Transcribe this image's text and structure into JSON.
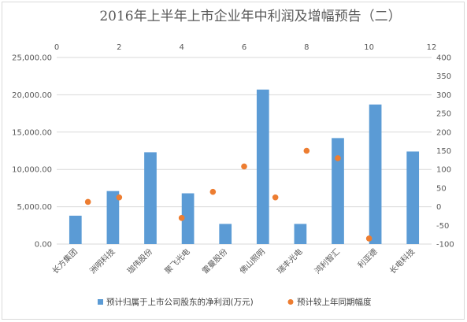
{
  "chart_data": {
    "type": "bar",
    "title": "2016年上半年上市企业年中利润及增幅预告（二）",
    "categories": [
      "长方集团",
      "洲明科技",
      "珈伟股份",
      "聚飞光电",
      "雷曼股份",
      "佛山照明",
      "瑞丰光电",
      "鸿利智汇",
      "利亚德",
      "长电科技"
    ],
    "series": [
      {
        "name": "预计归属于上市公司股东的净利润(万元)",
        "type": "bar",
        "axis": "left",
        "color": "#5b9bd5",
        "values": [
          3800,
          7100,
          12300,
          6800,
          2700,
          20700,
          2700,
          14200,
          18700,
          12400
        ]
      },
      {
        "name": "预计较上年同期幅度",
        "type": "scatter",
        "axis": "right",
        "color": "#ed7d31",
        "values": [
          13,
          25,
          -30,
          40,
          108,
          25,
          150,
          130,
          -85
        ]
      }
    ],
    "scatter_x": [
      1,
      2,
      4,
      5,
      6,
      7,
      8,
      9,
      10
    ],
    "y_left": {
      "min": 0,
      "max": 25000,
      "ticks": [
        "0.00",
        "5,000.00",
        "10,000.00",
        "15,000.00",
        "20,000.00",
        "25,000.00"
      ]
    },
    "y_right": {
      "min": -100,
      "max": 400,
      "ticks": [
        "-100",
        "-50",
        "0",
        "50",
        "100",
        "150",
        "200",
        "250",
        "300",
        "350",
        "400"
      ]
    },
    "x_top": {
      "min": 0,
      "max": 12,
      "ticks": [
        "0",
        "2",
        "4",
        "6",
        "8",
        "10",
        "12"
      ]
    },
    "grid": true,
    "legend_position": "bottom"
  }
}
